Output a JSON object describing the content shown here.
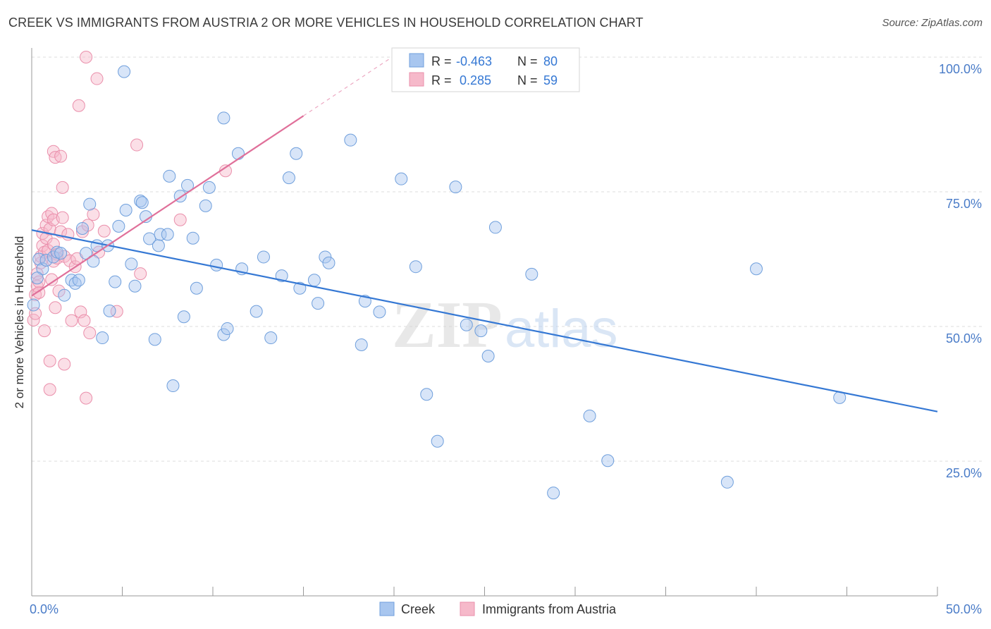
{
  "header": {
    "title": "CREEK VS IMMIGRANTS FROM AUSTRIA 2 OR MORE VEHICLES IN HOUSEHOLD CORRELATION CHART",
    "source": "Source: ZipAtlas.com"
  },
  "watermark": {
    "zip": "ZIP",
    "atlas": "atlas"
  },
  "stats_legend": {
    "r_label": "R =",
    "n_label": "N =",
    "rows": [
      {
        "r": "-0.463",
        "n": "80"
      },
      {
        "r": " 0.285",
        "n": "59"
      }
    ]
  },
  "colors": {
    "creek_fill": "#a8c6ef",
    "creek_stroke": "#6f9fdc",
    "creek_line": "#3578d4",
    "austria_fill": "#f6b9ca",
    "austria_stroke": "#ea8fab",
    "austria_line": "#e0709a",
    "axis_text": "#4a7cc8",
    "grid": "#dddddd"
  },
  "chart_data": {
    "type": "scatter",
    "title": "CREEK VS IMMIGRANTS FROM AUSTRIA 2 OR MORE VEHICLES IN HOUSEHOLD CORRELATION CHART",
    "xlabel": "",
    "ylabel": "2 or more Vehicles in Household",
    "xlim": [
      0,
      50
    ],
    "ylim": [
      0,
      105
    ],
    "x_tick_labels": [
      "0.0%",
      "50.0%"
    ],
    "y_ticks": [
      25,
      50,
      75,
      100
    ],
    "y_tick_labels": [
      "25.0%",
      "50.0%",
      "75.0%",
      "100.0%"
    ],
    "grid": true,
    "legend_position": "bottom-center",
    "series": [
      {
        "name": "Creek",
        "color": "#a8c6ef",
        "trend": {
          "x": [
            0,
            50
          ],
          "y": [
            67.9,
            34.2
          ]
        },
        "points": [
          [
            0.4,
            62.5
          ],
          [
            0.6,
            60.7
          ],
          [
            0.8,
            62.3
          ],
          [
            1.2,
            62.9
          ],
          [
            1.4,
            63.8
          ],
          [
            1.6,
            63.6
          ],
          [
            1.8,
            55.8
          ],
          [
            2.2,
            58.6
          ],
          [
            2.4,
            58.0
          ],
          [
            2.6,
            58.6
          ],
          [
            2.8,
            68.2
          ],
          [
            3.0,
            63.6
          ],
          [
            3.2,
            72.7
          ],
          [
            3.4,
            62.1
          ],
          [
            3.6,
            65.0
          ],
          [
            3.9,
            47.9
          ],
          [
            4.2,
            65.0
          ],
          [
            4.3,
            52.9
          ],
          [
            4.6,
            58.3
          ],
          [
            4.8,
            68.6
          ],
          [
            5.1,
            97.3
          ],
          [
            5.2,
            71.6
          ],
          [
            5.5,
            61.6
          ],
          [
            5.7,
            57.5
          ],
          [
            6.0,
            73.3
          ],
          [
            6.1,
            73.0
          ],
          [
            6.3,
            70.4
          ],
          [
            6.5,
            66.3
          ],
          [
            6.8,
            47.6
          ],
          [
            7.0,
            65.0
          ],
          [
            7.1,
            67.1
          ],
          [
            7.5,
            67.1
          ],
          [
            7.6,
            77.9
          ],
          [
            7.8,
            39.0
          ],
          [
            8.2,
            74.2
          ],
          [
            8.4,
            51.8
          ],
          [
            8.6,
            76.2
          ],
          [
            8.9,
            66.4
          ],
          [
            9.1,
            57.1
          ],
          [
            9.6,
            72.4
          ],
          [
            9.8,
            75.8
          ],
          [
            10.2,
            61.4
          ],
          [
            10.6,
            88.7
          ],
          [
            10.6,
            48.5
          ],
          [
            10.8,
            49.6
          ],
          [
            11.4,
            82.1
          ],
          [
            11.6,
            60.7
          ],
          [
            12.4,
            52.8
          ],
          [
            12.8,
            62.9
          ],
          [
            13.2,
            47.9
          ],
          [
            13.8,
            59.4
          ],
          [
            14.2,
            77.6
          ],
          [
            14.6,
            82.1
          ],
          [
            14.8,
            57.1
          ],
          [
            15.6,
            58.6
          ],
          [
            15.8,
            54.3
          ],
          [
            16.2,
            62.9
          ],
          [
            16.4,
            61.8
          ],
          [
            17.6,
            84.6
          ],
          [
            18.2,
            46.6
          ],
          [
            18.4,
            54.7
          ],
          [
            19.2,
            52.7
          ],
          [
            20.4,
            77.4
          ],
          [
            21.2,
            61.1
          ],
          [
            21.8,
            37.4
          ],
          [
            22.4,
            28.7
          ],
          [
            23.4,
            75.9
          ],
          [
            24.0,
            50.3
          ],
          [
            24.8,
            49.2
          ],
          [
            25.2,
            44.5
          ],
          [
            25.6,
            68.4
          ],
          [
            27.6,
            59.7
          ],
          [
            28.8,
            19.1
          ],
          [
            30.8,
            33.4
          ],
          [
            31.8,
            25.1
          ],
          [
            38.4,
            21.1
          ],
          [
            40.0,
            60.7
          ],
          [
            44.6,
            36.8
          ],
          [
            0.1,
            54.0
          ],
          [
            0.3,
            59.0
          ]
        ]
      },
      {
        "name": "Immigrants from Austria",
        "color": "#f6b9ca",
        "trend": {
          "x": [
            0,
            15
          ],
          "y": [
            55.7,
            89.1
          ]
        },
        "trend_dashed": {
          "x": [
            15,
            30
          ],
          "y": [
            89.1,
            122.5
          ]
        },
        "points": [
          [
            0.1,
            51.2
          ],
          [
            0.2,
            52.4
          ],
          [
            0.2,
            55.9
          ],
          [
            0.3,
            57.5
          ],
          [
            0.3,
            59.8
          ],
          [
            0.4,
            56.3
          ],
          [
            0.4,
            58.3
          ],
          [
            0.5,
            61.8
          ],
          [
            0.5,
            63.0
          ],
          [
            0.6,
            65.0
          ],
          [
            0.6,
            67.3
          ],
          [
            0.7,
            49.2
          ],
          [
            0.7,
            63.8
          ],
          [
            0.8,
            66.4
          ],
          [
            0.8,
            68.8
          ],
          [
            0.9,
            70.4
          ],
          [
            0.9,
            64.1
          ],
          [
            1.0,
            38.3
          ],
          [
            1.0,
            43.6
          ],
          [
            1.0,
            68.1
          ],
          [
            1.1,
            58.7
          ],
          [
            1.1,
            71.0
          ],
          [
            1.2,
            69.8
          ],
          [
            1.2,
            62.1
          ],
          [
            1.2,
            65.3
          ],
          [
            1.2,
            82.5
          ],
          [
            1.3,
            81.4
          ],
          [
            1.3,
            53.5
          ],
          [
            1.4,
            63.4
          ],
          [
            1.4,
            62.7
          ],
          [
            1.5,
            56.6
          ],
          [
            1.6,
            81.6
          ],
          [
            1.6,
            67.6
          ],
          [
            1.7,
            75.8
          ],
          [
            1.7,
            70.2
          ],
          [
            1.8,
            43.0
          ],
          [
            1.8,
            63.0
          ],
          [
            2.0,
            67.1
          ],
          [
            2.1,
            62.2
          ],
          [
            2.2,
            51.1
          ],
          [
            2.4,
            61.1
          ],
          [
            2.5,
            62.6
          ],
          [
            2.6,
            91.0
          ],
          [
            2.7,
            52.7
          ],
          [
            2.8,
            67.6
          ],
          [
            2.9,
            51.1
          ],
          [
            3.0,
            36.7
          ],
          [
            3.1,
            68.8
          ],
          [
            3.2,
            48.8
          ],
          [
            3.4,
            70.8
          ],
          [
            3.6,
            96.0
          ],
          [
            3.7,
            63.8
          ],
          [
            4.0,
            67.7
          ],
          [
            4.7,
            52.8
          ],
          [
            5.8,
            83.7
          ],
          [
            6.0,
            59.8
          ],
          [
            8.2,
            69.8
          ],
          [
            10.7,
            78.9
          ],
          [
            3.0,
            100.0
          ]
        ]
      }
    ]
  }
}
